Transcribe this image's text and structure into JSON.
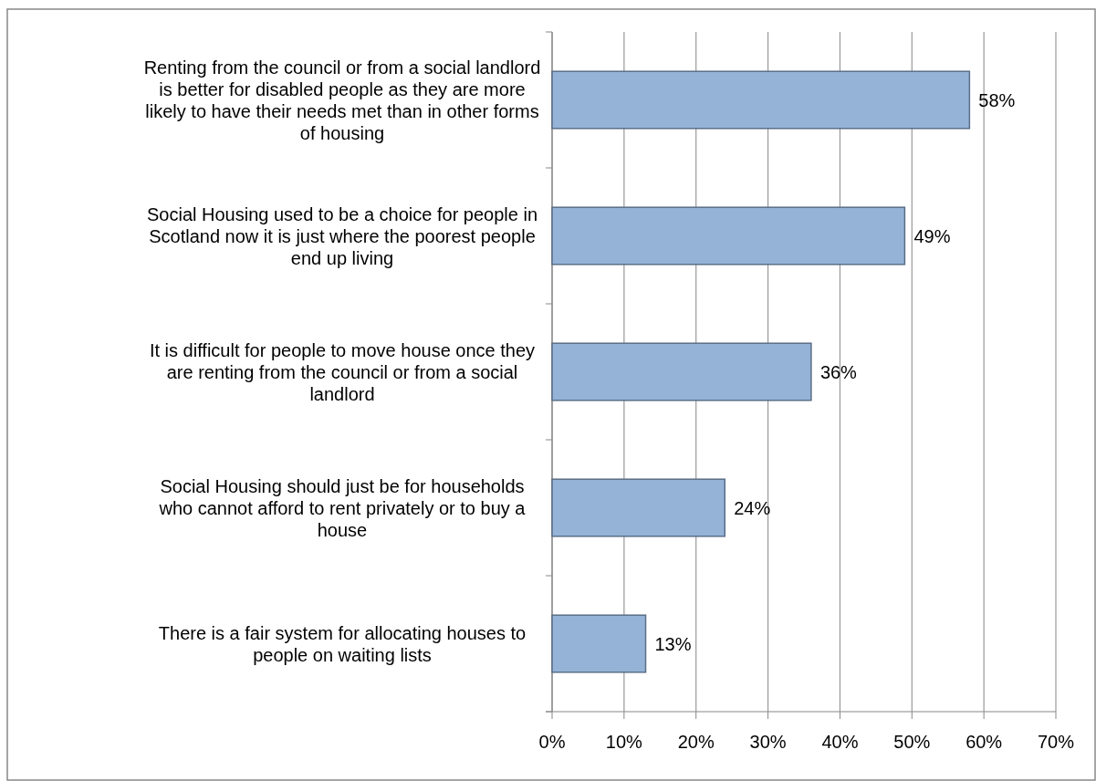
{
  "chart_data": {
    "type": "bar",
    "orientation": "horizontal",
    "categories": [
      "Renting from the council or from a social landlord is better for disabled people as they are more likely to have their needs met than in other forms of housing",
      "Social Housing used to be a choice for people in Scotland now it is just where the poorest people end up living",
      "It is difficult for people to move house once they are renting from the council or from a social landlord",
      "Social Housing should just be for households who cannot afford to rent privately or to buy a house",
      "There is a fair system for allocating houses to people on waiting lists"
    ],
    "values": [
      58,
      49,
      36,
      24,
      13
    ],
    "value_labels": [
      "58%",
      "49%",
      "36%",
      "24%",
      "13%"
    ],
    "color": "#95b3d7",
    "xlim": [
      0,
      70
    ],
    "xticks": [
      {
        "value": 0,
        "label": "0%"
      },
      {
        "value": 10,
        "label": "10%"
      },
      {
        "value": 20,
        "label": "20%"
      },
      {
        "value": 30,
        "label": "30%"
      },
      {
        "value": 40,
        "label": "40%"
      },
      {
        "value": 50,
        "label": "50%"
      },
      {
        "value": 60,
        "label": "60%"
      },
      {
        "value": 70,
        "label": "70%"
      }
    ],
    "grid": "x"
  }
}
